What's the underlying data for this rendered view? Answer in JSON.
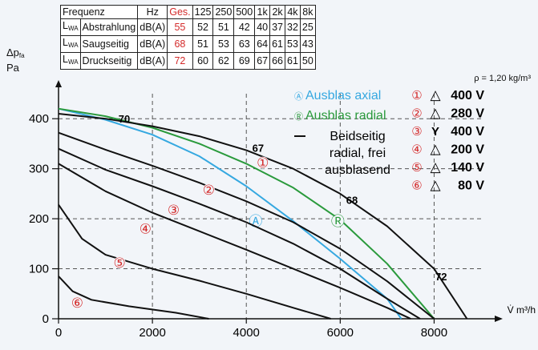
{
  "table": {
    "header": [
      "Frequenz",
      "Hz",
      "Ges.",
      "125",
      "250",
      "500",
      "1k",
      "2k",
      "4k",
      "8k"
    ],
    "rows": [
      {
        "sym": "L",
        "sub": "WA",
        "name": "Abstrahlung",
        "unit": "dB(A)",
        "ges": "55",
        "values": [
          "52",
          "51",
          "42",
          "40",
          "37",
          "32",
          "25"
        ]
      },
      {
        "sym": "L",
        "sub": "WA",
        "name": "Saugseitig",
        "unit": "dB(A)",
        "ges": "68",
        "values": [
          "51",
          "53",
          "63",
          "64",
          "61",
          "53",
          "43"
        ]
      },
      {
        "sym": "L",
        "sub": "WA",
        "name": "Druckseitig",
        "unit": "dB(A)",
        "ges": "72",
        "values": [
          "60",
          "62",
          "69",
          "67",
          "66",
          "61",
          "50"
        ]
      }
    ]
  },
  "colors": {
    "ges": "#d42a2a",
    "axial": "#35a8e0",
    "radial": "#2a9a3c",
    "free": "#111111",
    "marker": "#d42a2a",
    "grid": "#555555"
  },
  "chart_data": {
    "type": "line",
    "ylabel_symbol": "Δp",
    "ylabel_sub": "fa",
    "ylabel_unit": "Pa",
    "xlabel": "V̇ m³/h",
    "density_note": "ρ = 1,20 kg/m³",
    "xlim": [
      0,
      9000
    ],
    "ylim": [
      0,
      450
    ],
    "xticks": [
      0,
      2000,
      4000,
      6000,
      8000
    ],
    "yticks": [
      0,
      100,
      200,
      300,
      400
    ],
    "grid": "dashed",
    "legend": [
      {
        "marker": "Ⓐ",
        "text": "Ausblas axial",
        "color": "#35a8e0"
      },
      {
        "marker": "Ⓡ",
        "text": "Ausblas radial",
        "color": "#2a9a3c"
      },
      {
        "marker": "—",
        "text": "Beidseitig radial, frei ausblasend",
        "lines": [
          "Beidseitig",
          "radial, frei",
          "ausblasend"
        ],
        "color": "#111111"
      }
    ],
    "voltage_legend": [
      {
        "num": "①",
        "sym": "△",
        "volt": "400 V"
      },
      {
        "num": "②",
        "sym": "△",
        "volt": "280 V"
      },
      {
        "num": "③",
        "sym": "Y",
        "volt": "400 V"
      },
      {
        "num": "④",
        "sym": "△",
        "volt": "200 V"
      },
      {
        "num": "⑤",
        "sym": "△",
        "volt": "140 V"
      },
      {
        "num": "⑥",
        "sym": "△",
        "volt": " 80 V"
      }
    ],
    "series": [
      {
        "id": "ax",
        "marker": "Ⓐ",
        "color": "#35a8e0",
        "labelAt": [
          4200,
          195
        ],
        "x": [
          0,
          1000,
          2000,
          3000,
          4000,
          5000,
          6000,
          7000,
          7300
        ],
        "y": [
          420,
          398,
          368,
          325,
          265,
          195,
          120,
          40,
          0
        ]
      },
      {
        "id": "rad",
        "marker": "Ⓡ",
        "color": "#2a9a3c",
        "labelAt": [
          5950,
          195
        ],
        "x": [
          0,
          1000,
          2000,
          3000,
          4000,
          5000,
          6000,
          7000,
          8000
        ],
        "y": [
          420,
          405,
          382,
          350,
          310,
          262,
          198,
          110,
          0
        ]
      },
      {
        "id": "c1",
        "marker": "①",
        "color": "#111111",
        "labelAt": [
          4350,
          312
        ],
        "x": [
          0,
          1000,
          2000,
          3000,
          4000,
          5000,
          6000,
          7000,
          8000,
          8700
        ],
        "y": [
          410,
          400,
          385,
          365,
          337,
          300,
          250,
          185,
          100,
          0
        ]
      },
      {
        "id": "c2",
        "marker": "②",
        "color": "#111111",
        "labelAt": [
          3200,
          258
        ],
        "x": [
          0,
          1000,
          2000,
          3000,
          4000,
          5000,
          6000,
          7000,
          8000
        ],
        "y": [
          372,
          338,
          306,
          272,
          235,
          193,
          140,
          75,
          0
        ]
      },
      {
        "id": "c3",
        "marker": "③",
        "color": "#111111",
        "labelAt": [
          2450,
          218
        ],
        "x": [
          0,
          1000,
          2000,
          3000,
          4000,
          5000,
          6000,
          7000,
          7700
        ],
        "y": [
          340,
          298,
          265,
          230,
          193,
          150,
          100,
          40,
          0
        ]
      },
      {
        "id": "c4",
        "marker": "④",
        "color": "#111111",
        "labelAt": [
          1850,
          180
        ],
        "x": [
          0,
          1000,
          2000,
          3000,
          4000,
          5000,
          6000,
          7000,
          7500
        ],
        "y": [
          310,
          255,
          212,
          175,
          138,
          100,
          62,
          22,
          0
        ]
      },
      {
        "id": "c5",
        "marker": "⑤",
        "color": "#111111",
        "labelAt": [
          1300,
          112
        ],
        "x": [
          0,
          500,
          1000,
          2000,
          3000,
          4000,
          5000,
          5800
        ],
        "y": [
          228,
          160,
          128,
          100,
          76,
          50,
          22,
          0
        ]
      },
      {
        "id": "c6",
        "marker": "⑥",
        "color": "#111111",
        "labelAt": [
          400,
          32
        ],
        "x": [
          0,
          300,
          700,
          1500,
          2500,
          3200
        ],
        "y": [
          85,
          55,
          38,
          25,
          12,
          0
        ]
      }
    ],
    "curve_labels": [
      {
        "text": "70",
        "x": 1400,
        "y": 400
      },
      {
        "text": "67",
        "x": 4250,
        "y": 342
      },
      {
        "text": "68",
        "x": 6250,
        "y": 238
      },
      {
        "text": "72",
        "x": 8150,
        "y": 85
      }
    ]
  }
}
